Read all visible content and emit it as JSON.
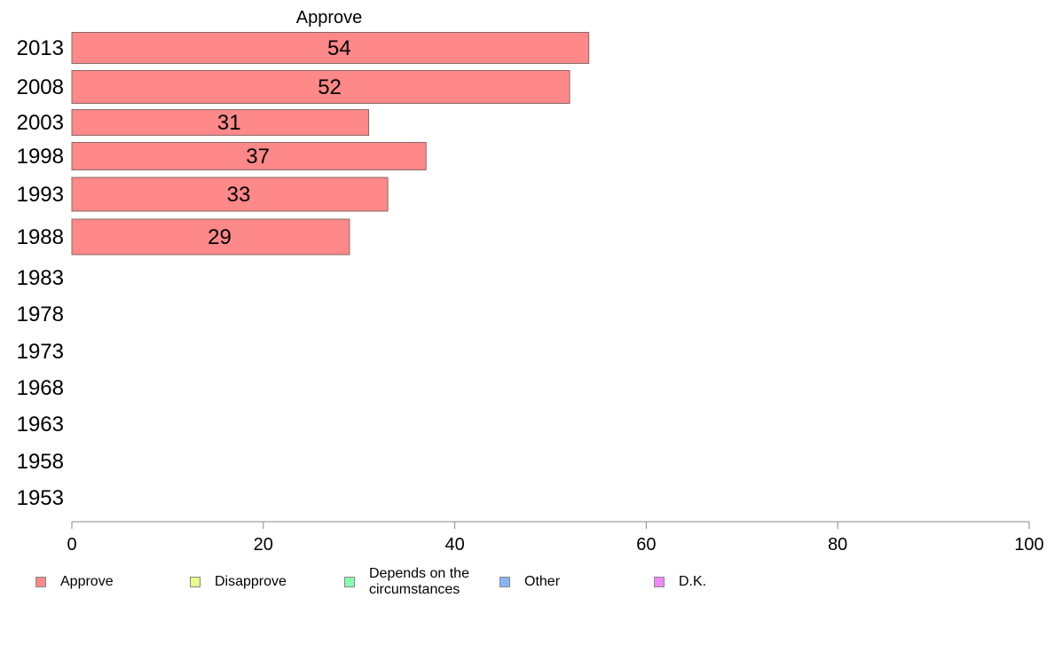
{
  "chart_data": {
    "type": "bar",
    "orientation": "horizontal",
    "title": "Approve",
    "categories": [
      "2013",
      "2008",
      "2003",
      "1998",
      "1993",
      "1988",
      "1983",
      "1978",
      "1973",
      "1968",
      "1963",
      "1958",
      "1953"
    ],
    "series": [
      {
        "name": "Approve",
        "color": "#ff8888",
        "values": [
          54,
          52,
          31,
          37,
          33,
          29,
          null,
          null,
          null,
          null,
          null,
          null,
          null
        ],
        "labels": [
          "54",
          "52",
          "31",
          "37",
          "33",
          "29",
          "",
          "",
          "",
          "",
          "",
          "",
          ""
        ]
      }
    ],
    "xlim": [
      0,
      100
    ],
    "xticks": [
      0,
      20,
      40,
      60,
      80,
      100
    ],
    "xtick_labels": [
      "0",
      "20",
      "40",
      "60",
      "80",
      "100"
    ],
    "grid": false,
    "legend_position": "bottom",
    "legend": [
      {
        "label": "Approve",
        "color": "#ff8888"
      },
      {
        "label": "Disapprove",
        "color": "#e8ff88"
      },
      {
        "label": "Depends on the circumstances",
        "color": "#88ffb0"
      },
      {
        "label": "Other",
        "color": "#88b4ff"
      },
      {
        "label": "D.K.",
        "color": "#f088ff"
      }
    ]
  }
}
